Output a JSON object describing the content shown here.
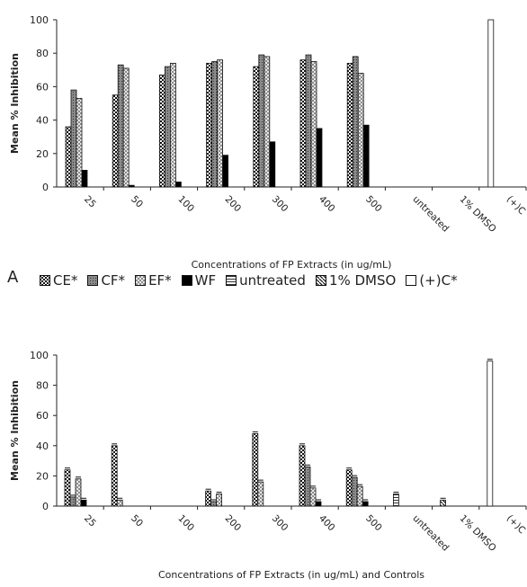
{
  "panel_labels": {
    "bottom": "A"
  },
  "legend": [
    {
      "label": "CE*",
      "fill": "pat-ce"
    },
    {
      "label": "CF*",
      "fill": "pat-cf"
    },
    {
      "label": "EF*",
      "fill": "pat-ef"
    },
    {
      "label": "WF",
      "fill": "solid-black"
    },
    {
      "label": "untreated",
      "fill": "pat-untreated"
    },
    {
      "label": "1% DMSO",
      "fill": "pat-dmso"
    },
    {
      "label": "(+)C*",
      "fill": "white"
    }
  ],
  "chart_data": [
    {
      "type": "bar",
      "title": "",
      "xlabel": "Concentrations of FP Extracts (in ug/mL)",
      "ylabel": "Mean % Inhibition",
      "ylim": [
        0,
        100
      ],
      "yticks": [
        0,
        20,
        40,
        60,
        80,
        100
      ],
      "categories": [
        "25",
        "50",
        "100",
        "200",
        "300",
        "400",
        "500",
        "untreated",
        "1% DMSO",
        "(+)C"
      ],
      "series": [
        {
          "name": "CE*",
          "values": [
            36,
            55,
            67,
            74,
            72,
            76,
            74,
            0,
            0,
            0
          ]
        },
        {
          "name": "CF*",
          "values": [
            58,
            73,
            72,
            75,
            79,
            79,
            78,
            0,
            0,
            0
          ]
        },
        {
          "name": "EF*",
          "values": [
            53,
            71,
            74,
            76,
            78,
            75,
            68,
            0,
            0,
            0
          ]
        },
        {
          "name": "WF",
          "values": [
            10,
            1,
            3,
            19,
            27,
            35,
            37,
            0,
            0,
            0
          ]
        },
        {
          "name": "untreated",
          "values": [
            0,
            0,
            0,
            0,
            0,
            0,
            0,
            0,
            0,
            0
          ]
        },
        {
          "name": "1% DMSO",
          "values": [
            0,
            0,
            0,
            0,
            0,
            0,
            0,
            0,
            0,
            0
          ]
        },
        {
          "name": "(+)C*",
          "values": [
            0,
            0,
            0,
            0,
            0,
            0,
            0,
            0,
            0,
            100
          ]
        }
      ]
    },
    {
      "type": "bar",
      "title": "",
      "xlabel": "Concentrations of FP Extracts (in ug/mL) and Controls",
      "ylabel": "Mean % Inhibition",
      "ylim": [
        0,
        100
      ],
      "yticks": [
        0,
        20,
        40,
        60,
        80,
        100
      ],
      "categories": [
        "25",
        "50",
        "100",
        "200",
        "300",
        "400",
        "500",
        "untreated",
        "1% DMSO",
        "(+)C"
      ],
      "series": [
        {
          "name": "CE*",
          "values": [
            24,
            40,
            0,
            10,
            48,
            40,
            24,
            0,
            0,
            0
          ]
        },
        {
          "name": "CF*",
          "values": [
            6,
            0,
            0,
            3,
            0,
            26,
            19,
            0,
            0,
            0
          ]
        },
        {
          "name": "EF*",
          "values": [
            18,
            4,
            0,
            8,
            16,
            12,
            13,
            0,
            0,
            0
          ]
        },
        {
          "name": "WF",
          "values": [
            4,
            0,
            0,
            0,
            0,
            3,
            3,
            0,
            0,
            0
          ]
        },
        {
          "name": "untreated",
          "values": [
            0,
            0,
            0,
            0,
            0,
            0,
            0,
            8,
            0,
            0
          ]
        },
        {
          "name": "1% DMSO",
          "values": [
            0,
            0,
            0,
            0,
            0,
            0,
            0,
            0,
            4,
            0
          ]
        },
        {
          "name": "(+)C*",
          "values": [
            0,
            0,
            0,
            0,
            0,
            0,
            0,
            0,
            0,
            96
          ]
        }
      ]
    }
  ]
}
